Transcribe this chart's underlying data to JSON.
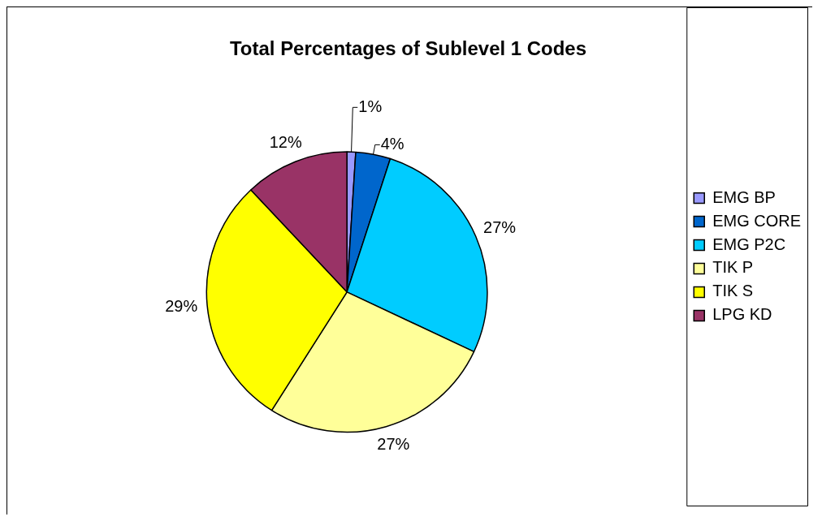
{
  "chart_data": {
    "type": "pie",
    "title": "Total Percentages of Sublevel 1 Codes",
    "categories": [
      "EMG BP",
      "EMG CORE",
      "EMG P2C",
      "TIK P",
      "TIK S",
      "LPG KD"
    ],
    "values": [
      1,
      4,
      27,
      27,
      29,
      12
    ],
    "value_labels": [
      "1%",
      "4%",
      "27%",
      "27%",
      "29%",
      "12%"
    ],
    "colors": [
      "#9999ff",
      "#0066cc",
      "#00ccff",
      "#ffff99",
      "#ffff00",
      "#993366"
    ],
    "legend": "right"
  }
}
